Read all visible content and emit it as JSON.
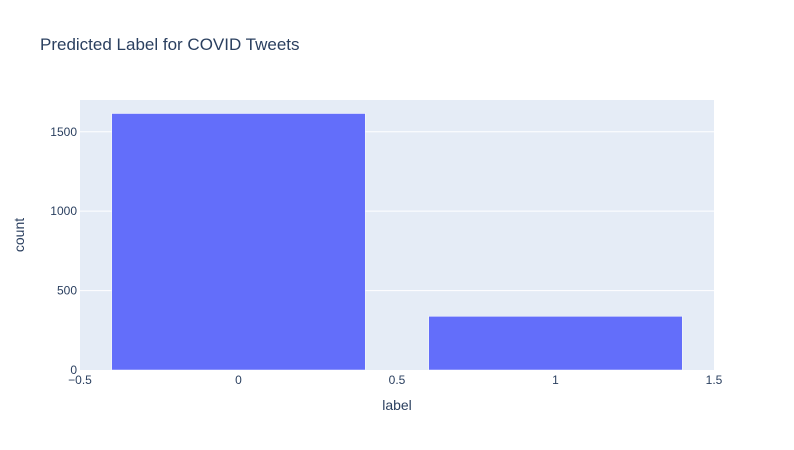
{
  "chart_data": {
    "type": "bar",
    "title": "Predicted Label for COVID Tweets",
    "xlabel": "label",
    "ylabel": "count",
    "x": [
      0,
      1
    ],
    "values": [
      1615,
      338
    ],
    "xlim": [
      -0.5,
      1.5
    ],
    "ylim": [
      0,
      1700
    ],
    "bar_width": 0.8,
    "x_ticks": [
      -0.5,
      0,
      0.5,
      1,
      1.5
    ],
    "x_tick_labels": [
      "−0.5",
      "0",
      "0.5",
      "1",
      "1.5"
    ],
    "y_ticks": [
      0,
      500,
      1000,
      1500
    ],
    "y_tick_labels": [
      "0",
      "500",
      "1000",
      "1500"
    ],
    "grid": true,
    "colors": {
      "bar": "#636efa",
      "plot_bg": "#e5ecf6",
      "grid": "#ffffff",
      "text": "#2a3f5f"
    }
  }
}
